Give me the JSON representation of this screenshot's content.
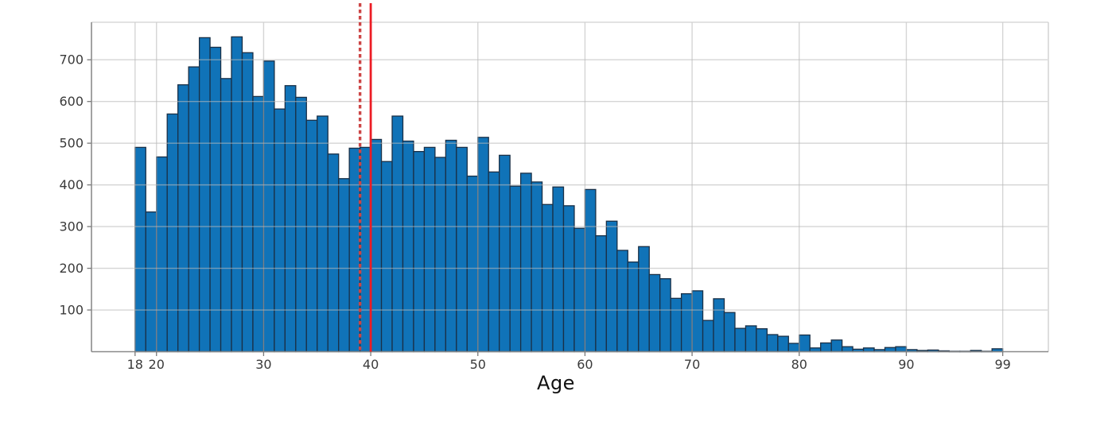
{
  "chart_data": {
    "type": "bar",
    "subtype": "histogram",
    "title": "",
    "xlabel": "Age",
    "ylabel": "",
    "grid": true,
    "legend": "none",
    "xlim": [
      13.93,
      103.26
    ],
    "ylim": [
      0,
      790
    ],
    "x_ticks": [
      18,
      20,
      30,
      40,
      50,
      60,
      70,
      80,
      90,
      99
    ],
    "x_tick_labels": [
      "18",
      "20",
      "30",
      "40",
      "50",
      "60",
      "70",
      "80",
      "90",
      "99"
    ],
    "y_ticks": [
      100,
      200,
      300,
      400,
      500,
      600,
      700
    ],
    "y_tick_labels": [
      "100",
      "200",
      "300",
      "400",
      "500",
      "600",
      "700"
    ],
    "bin_width": 1,
    "bin_start_ages": [
      18,
      19,
      20,
      21,
      22,
      23,
      24,
      25,
      26,
      27,
      28,
      29,
      30,
      31,
      32,
      33,
      34,
      35,
      36,
      37,
      38,
      39,
      40,
      41,
      42,
      43,
      44,
      45,
      46,
      47,
      48,
      49,
      50,
      51,
      52,
      53,
      54,
      55,
      56,
      57,
      58,
      59,
      60,
      61,
      62,
      63,
      64,
      65,
      66,
      67,
      68,
      69,
      70,
      71,
      72,
      73,
      74,
      75,
      76,
      77,
      78,
      79,
      80,
      81,
      82,
      83,
      84,
      85,
      86,
      87,
      88,
      89,
      90,
      91,
      92,
      93,
      94,
      95,
      96,
      97,
      98
    ],
    "values": [
      490,
      335,
      467,
      570,
      640,
      683,
      753,
      730,
      655,
      755,
      717,
      612,
      697,
      582,
      638,
      610,
      555,
      565,
      474,
      415,
      488,
      490,
      509,
      456,
      565,
      505,
      480,
      490,
      466,
      507,
      490,
      421,
      514,
      431,
      471,
      397,
      428,
      407,
      353,
      395,
      350,
      296,
      389,
      278,
      313,
      243,
      215,
      252,
      185,
      175,
      128,
      139,
      146,
      75,
      127,
      94,
      56,
      62,
      55,
      41,
      37,
      20,
      40,
      9,
      21,
      28,
      12,
      6,
      9,
      5,
      10,
      12,
      5,
      3,
      4,
      2,
      1,
      1,
      3,
      1,
      7
    ],
    "reference_lines": [
      {
        "name": "median-line",
        "x": 39,
        "style": "dashed",
        "color": "#cc4545"
      },
      {
        "name": "mean-line",
        "x": 40,
        "style": "solid",
        "color": "#ec1c24"
      }
    ],
    "colors": {
      "bar_fill": "#1073b8",
      "bar_edge": "#1a3047",
      "gridline": "#d8d8d8",
      "axis_spine": "#8a8a8a",
      "frame_light": "#d0d0d0",
      "tick_label": "#3a3a3a",
      "axis_title": "#111111"
    }
  }
}
